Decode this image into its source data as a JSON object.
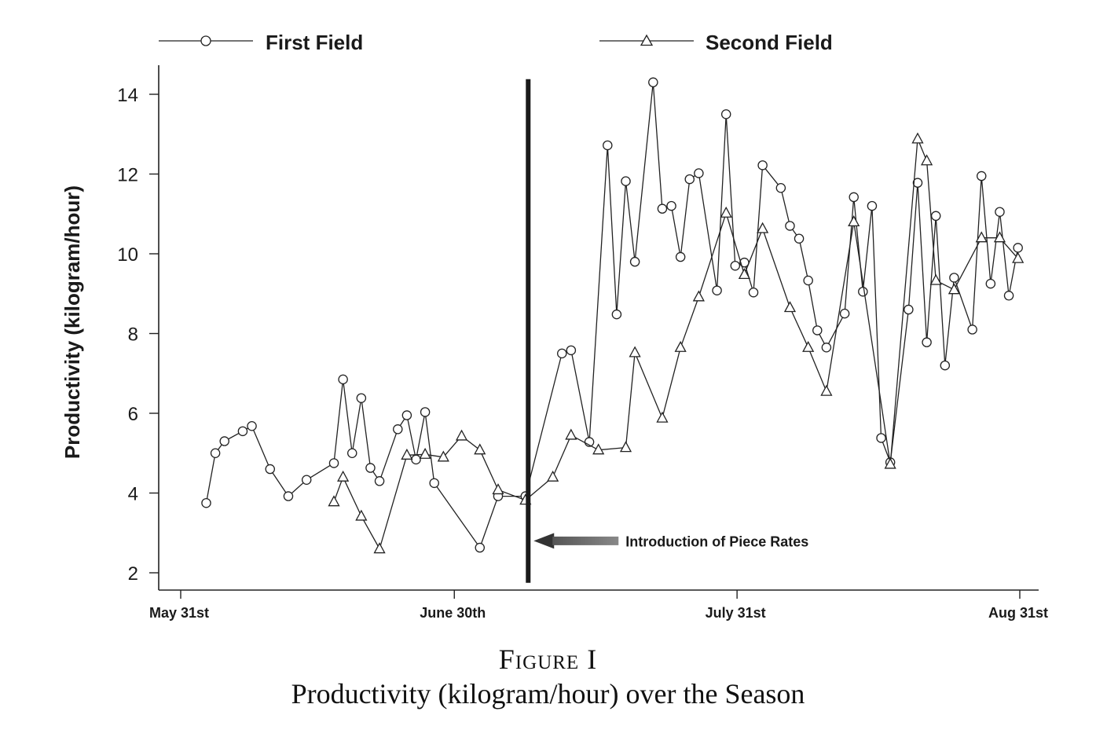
{
  "chart_data": {
    "type": "line",
    "ylabel": "Productivity (kilogram/hour)",
    "ylim": [
      1.6,
      14.7
    ],
    "yticks": [
      2,
      4,
      6,
      8,
      10,
      12,
      14
    ],
    "xlim": [
      -1.5,
      94
    ],
    "xticks": [
      {
        "day": 0,
        "label": "May 31st"
      },
      {
        "day": 30,
        "label": "June 30th"
      },
      {
        "day": 61,
        "label": "July 31st"
      },
      {
        "day": 92,
        "label": "Aug 31st"
      }
    ],
    "series": [
      {
        "name": "First Field",
        "marker": "circle",
        "points": [
          [
            2.8,
            3.75
          ],
          [
            3.8,
            5.0
          ],
          [
            4.8,
            5.3
          ],
          [
            6.8,
            5.55
          ],
          [
            7.8,
            5.68
          ],
          [
            9.8,
            4.6
          ],
          [
            11.8,
            3.92
          ],
          [
            13.8,
            4.33
          ],
          [
            16.8,
            4.75
          ],
          [
            17.8,
            6.85
          ],
          [
            18.8,
            5.0
          ],
          [
            19.8,
            6.38
          ],
          [
            20.8,
            4.63
          ],
          [
            21.8,
            4.3
          ],
          [
            23.8,
            5.6
          ],
          [
            24.8,
            5.95
          ],
          [
            25.8,
            4.84
          ],
          [
            26.8,
            6.03
          ],
          [
            27.8,
            4.25
          ],
          [
            32.8,
            2.63
          ],
          [
            34.8,
            3.92
          ],
          [
            37.8,
            3.92
          ],
          [
            41.8,
            7.5
          ],
          [
            42.8,
            7.58
          ],
          [
            44.8,
            5.28
          ],
          [
            46.8,
            12.72
          ],
          [
            47.8,
            8.48
          ],
          [
            48.8,
            11.82
          ],
          [
            49.8,
            9.8
          ],
          [
            51.8,
            14.3
          ],
          [
            52.8,
            11.13
          ],
          [
            53.8,
            11.2
          ],
          [
            54.8,
            9.92
          ],
          [
            55.8,
            11.87
          ],
          [
            56.8,
            12.02
          ],
          [
            58.8,
            9.08
          ],
          [
            59.8,
            13.5
          ],
          [
            60.8,
            9.7
          ],
          [
            61.8,
            9.78
          ],
          [
            62.8,
            9.03
          ],
          [
            63.8,
            12.22
          ],
          [
            65.8,
            11.65
          ],
          [
            66.8,
            10.7
          ],
          [
            67.8,
            10.38
          ],
          [
            68.8,
            9.33
          ],
          [
            69.8,
            8.08
          ],
          [
            70.8,
            7.65
          ],
          [
            72.8,
            8.5
          ],
          [
            73.8,
            11.42
          ],
          [
            74.8,
            9.05
          ],
          [
            75.8,
            11.2
          ],
          [
            76.8,
            5.38
          ],
          [
            77.8,
            4.77
          ],
          [
            79.8,
            8.6
          ],
          [
            80.8,
            11.78
          ],
          [
            81.8,
            7.78
          ],
          [
            82.8,
            10.95
          ],
          [
            83.8,
            7.2
          ],
          [
            84.8,
            9.4
          ],
          [
            86.8,
            8.1
          ],
          [
            87.8,
            11.95
          ],
          [
            88.8,
            9.25
          ],
          [
            89.8,
            11.05
          ],
          [
            90.8,
            8.95
          ],
          [
            91.8,
            10.15
          ]
        ]
      },
      {
        "name": "Second Field",
        "marker": "triangle",
        "points": [
          [
            16.8,
            3.78
          ],
          [
            17.8,
            4.4
          ],
          [
            19.8,
            3.42
          ],
          [
            21.8,
            2.6
          ],
          [
            24.8,
            4.95
          ],
          [
            26.8,
            4.97
          ],
          [
            28.8,
            4.9
          ],
          [
            30.8,
            5.43
          ],
          [
            32.8,
            5.08
          ],
          [
            34.8,
            4.08
          ],
          [
            37.8,
            3.82
          ],
          [
            40.8,
            4.4
          ],
          [
            42.8,
            5.45
          ],
          [
            45.8,
            5.08
          ],
          [
            48.8,
            5.14
          ],
          [
            49.8,
            7.52
          ],
          [
            52.8,
            5.88
          ],
          [
            54.8,
            7.65
          ],
          [
            56.8,
            8.92
          ],
          [
            59.8,
            11.02
          ],
          [
            61.8,
            9.48
          ],
          [
            63.8,
            10.63
          ],
          [
            66.8,
            8.65
          ],
          [
            68.8,
            7.65
          ],
          [
            70.8,
            6.55
          ],
          [
            73.8,
            10.8
          ],
          [
            77.8,
            4.72
          ],
          [
            80.8,
            12.88
          ],
          [
            81.8,
            12.33
          ],
          [
            82.8,
            9.33
          ],
          [
            84.8,
            9.1
          ],
          [
            87.8,
            10.4
          ],
          [
            89.8,
            10.4
          ],
          [
            91.8,
            9.88
          ]
        ]
      }
    ],
    "vertical_line": {
      "day": 38.1,
      "ylim": [
        1.75,
        14.38
      ]
    },
    "annotation": {
      "text": "Introduction of Piece Rates",
      "arrow_points_to_day": 38.7,
      "y": 2.8
    }
  },
  "caption": {
    "figure_label": "Figure I",
    "title": "Productivity (kilogram/hour) over the Season"
  }
}
